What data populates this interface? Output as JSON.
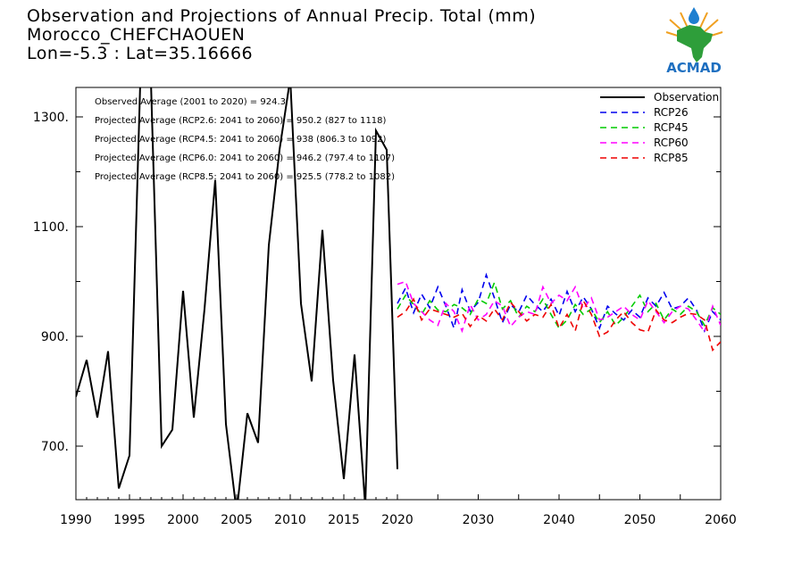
{
  "header": {
    "title_line1": "Observation and Projections of Annual Precip. Total (mm)",
    "title_line2": "Morocco_CHEFCHAOUEN",
    "title_line3": "Lon=-5.3 : Lat=35.16666"
  },
  "logo": {
    "text": "ACMAD"
  },
  "annotations": [
    "Observed Average (2001 to 2020) = 924.3",
    "Projected Average (RCP2.6: 2041 to 2060) = 950.2 (827 to 1118)",
    "Projected Average (RCP4.5: 2041 to 2060) = 938 (806.3 to 1092)",
    "Projected Average (RCP6.0: 2041 to 2060) = 946.2 (797.4 to 1107)",
    "Projected Average (RCP8.5: 2041 to 2060) = 925.5 (778.2 to 1082)"
  ],
  "chart_data": {
    "type": "line",
    "title": "Observation and Projections of Annual Precip. Total (mm)",
    "xlabel": "",
    "ylabel": "",
    "ylim": [
      600,
      1350
    ],
    "grid": false,
    "legend_position": "top-right",
    "x_ticks": [
      {
        "value": 1990,
        "label": "1990"
      },
      {
        "value": 1995,
        "label": "1995"
      },
      {
        "value": 2000,
        "label": "2000"
      },
      {
        "value": 2005,
        "label": "2005"
      },
      {
        "value": 2010,
        "label": "2010"
      },
      {
        "value": 2015,
        "label": "2015"
      },
      {
        "value": 2020,
        "label": "2020"
      },
      {
        "value": 2030,
        "label": "2030"
      },
      {
        "value": 2040,
        "label": "2040"
      },
      {
        "value": 2050,
        "label": "2050"
      },
      {
        "value": 2060,
        "label": "2060"
      }
    ],
    "y_ticks": [
      {
        "value": 700,
        "label": "700."
      },
      {
        "value": 900,
        "label": "900."
      },
      {
        "value": 1100,
        "label": "1100."
      },
      {
        "value": 1300,
        "label": "1300."
      }
    ],
    "series": [
      {
        "name": "Observation",
        "color": "#000000",
        "dash": "solid",
        "x": [
          1990,
          1991,
          1992,
          1993,
          1994,
          1995,
          1996,
          1997,
          1998,
          1999,
          2000,
          2001,
          2002,
          2003,
          2004,
          2005,
          2006,
          2007,
          2008,
          2009,
          2010,
          2011,
          2012,
          2013,
          2014,
          2015,
          2016,
          2017,
          2018,
          2019,
          2020
        ],
        "y": [
          790,
          857,
          752,
          873,
          623,
          683,
          1360,
          1365,
          700,
          730,
          983,
          752,
          950,
          1185,
          740,
          580,
          760,
          706,
          1066,
          1240,
          1370,
          960,
          818,
          1094,
          820,
          640,
          867,
          590,
          1275,
          1240,
          658
        ]
      },
      {
        "name": "RCP26",
        "color": "#0000ee",
        "dash": "dashed",
        "x": [
          2020,
          2021,
          2022,
          2023,
          2024,
          2025,
          2026,
          2027,
          2028,
          2029,
          2030,
          2031,
          2032,
          2033,
          2034,
          2035,
          2036,
          2037,
          2038,
          2039,
          2040,
          2041,
          2042,
          2043,
          2044,
          2045,
          2046,
          2047,
          2048,
          2049,
          2050,
          2051,
          2052,
          2053,
          2054,
          2055,
          2056,
          2057,
          2058,
          2059,
          2060
        ],
        "y": [
          960,
          988,
          943,
          977,
          952,
          990,
          955,
          915,
          985,
          946,
          962,
          1012,
          970,
          925,
          958,
          944,
          975,
          958,
          945,
          968,
          938,
          982,
          945,
          972,
          950,
          915,
          955,
          941,
          930,
          948,
          935,
          970,
          955,
          980,
          950,
          955,
          970,
          948,
          910,
          945,
          930
        ]
      },
      {
        "name": "RCP45",
        "color": "#00cc00",
        "dash": "dashed",
        "x": [
          2020,
          2021,
          2022,
          2023,
          2024,
          2025,
          2026,
          2027,
          2028,
          2029,
          2030,
          2031,
          2032,
          2033,
          2034,
          2035,
          2036,
          2037,
          2038,
          2039,
          2040,
          2041,
          2042,
          2043,
          2044,
          2045,
          2046,
          2047,
          2048,
          2049,
          2050,
          2051,
          2052,
          2053,
          2054,
          2055,
          2056,
          2057,
          2058,
          2059,
          2060
        ],
        "y": [
          950,
          975,
          958,
          940,
          965,
          948,
          945,
          958,
          952,
          940,
          968,
          960,
          998,
          950,
          965,
          935,
          955,
          945,
          968,
          940,
          915,
          930,
          958,
          940,
          950,
          925,
          945,
          920,
          935,
          955,
          975,
          945,
          960,
          930,
          950,
          940,
          955,
          945,
          920,
          952,
          940
        ]
      },
      {
        "name": "RCP60",
        "color": "#ff00ff",
        "dash": "dashed",
        "x": [
          2020,
          2021,
          2022,
          2023,
          2024,
          2025,
          2026,
          2027,
          2028,
          2029,
          2030,
          2031,
          2032,
          2033,
          2034,
          2035,
          2036,
          2037,
          2038,
          2039,
          2040,
          2041,
          2042,
          2043,
          2044,
          2045,
          2046,
          2047,
          2048,
          2049,
          2050,
          2051,
          2052,
          2053,
          2054,
          2055,
          2056,
          2057,
          2058,
          2059,
          2060
        ],
        "y": [
          995,
          1000,
          960,
          945,
          930,
          920,
          960,
          945,
          910,
          958,
          930,
          940,
          965,
          955,
          918,
          935,
          945,
          940,
          990,
          960,
          975,
          965,
          990,
          950,
          970,
          930,
          935,
          945,
          955,
          940,
          930,
          965,
          945,
          925,
          945,
          955,
          950,
          930,
          908,
          955,
          920
        ]
      },
      {
        "name": "RCP85",
        "color": "#ee0000",
        "dash": "dashed",
        "x": [
          2020,
          2021,
          2022,
          2023,
          2024,
          2025,
          2026,
          2027,
          2028,
          2029,
          2030,
          2031,
          2032,
          2033,
          2034,
          2035,
          2036,
          2037,
          2038,
          2039,
          2040,
          2041,
          2042,
          2043,
          2044,
          2045,
          2046,
          2047,
          2048,
          2049,
          2050,
          2051,
          2052,
          2053,
          2054,
          2055,
          2056,
          2057,
          2058,
          2059,
          2060
        ],
        "y": [
          935,
          945,
          968,
          930,
          950,
          945,
          940,
          935,
          942,
          918,
          938,
          928,
          950,
          930,
          962,
          945,
          928,
          940,
          935,
          958,
          915,
          940,
          910,
          965,
          940,
          900,
          908,
          930,
          945,
          925,
          912,
          908,
          948,
          930,
          925,
          935,
          942,
          940,
          930,
          875,
          890
        ]
      }
    ]
  }
}
